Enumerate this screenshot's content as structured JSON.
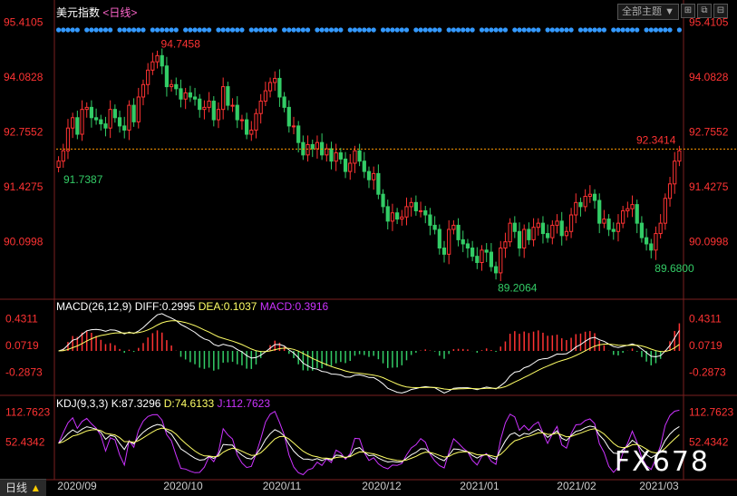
{
  "header": {
    "symbol": "美元指数",
    "timeframe_label": "<日线>",
    "theme_selector": "全部主题",
    "theme_arrow": "▼",
    "win_buttons": [
      "⊞",
      "⧉",
      "⊟"
    ]
  },
  "watermark": "FX678",
  "bottom_bar": {
    "timeframe": "日线",
    "arrow": "▲"
  },
  "colors": {
    "up": "#ff3333",
    "down": "#33cc66",
    "diff": "#ffffff",
    "dea": "#ffff66",
    "k": "#ffffff",
    "d": "#ffff66",
    "j": "#cc33ff",
    "marker": "#3399ff",
    "price_line": "#ff9900"
  },
  "chart_data": [
    {
      "type": "candlestick",
      "title": "美元指数",
      "y_ticks": [
        "95.4105",
        "94.0828",
        "92.7552",
        "91.4275",
        "90.0998"
      ],
      "y_tick_values": [
        95.4105,
        94.0828,
        92.7552,
        91.4275,
        90.0998
      ],
      "ylim": [
        88.8,
        95.55
      ],
      "x_ticks": [
        "2020/09",
        "2020/10",
        "2020/11",
        "2020/12",
        "2021/01",
        "2021/02",
        "2021/03"
      ],
      "annotations": {
        "high": "94.7458",
        "high_value": 94.7458,
        "low": "89.2064",
        "low_value": 89.2064,
        "start_low": "91.7387",
        "start_low_value": 91.7387,
        "recent_low": "89.6800",
        "recent_low_value": 89.68,
        "last": "92.3414",
        "last_value": 92.3414
      },
      "close": [
        92.05,
        92.3,
        92.85,
        93.1,
        92.7,
        93.3,
        93.35,
        93.1,
        93.05,
        92.95,
        92.85,
        93.3,
        93.1,
        92.9,
        92.8,
        93.4,
        93.0,
        93.6,
        93.9,
        94.25,
        94.45,
        94.6,
        94.35,
        93.85,
        93.9,
        93.8,
        93.55,
        93.7,
        93.6,
        93.55,
        93.3,
        93.35,
        93.5,
        93.05,
        93.3,
        93.85,
        93.4,
        93.4,
        93.05,
        93.05,
        92.7,
        92.8,
        93.2,
        93.5,
        93.75,
        93.95,
        94.05,
        93.6,
        93.35,
        92.9,
        92.9,
        92.5,
        92.2,
        92.45,
        92.35,
        92.5,
        92.2,
        92.35,
        92.05,
        92.25,
        92.1,
        91.8,
        92.0,
        92.3,
        92.05,
        91.8,
        91.6,
        91.75,
        91.25,
        90.95,
        90.6,
        90.8,
        90.65,
        90.7,
        90.95,
        91.05,
        90.85,
        90.85,
        90.75,
        90.5,
        90.4,
        89.95,
        89.8,
        90.4,
        90.5,
        90.15,
        90.05,
        89.95,
        89.75,
        89.6,
        89.9,
        89.85,
        89.5,
        89.35,
        89.95,
        90.1,
        90.55,
        90.35,
        89.95,
        90.4,
        90.15,
        90.45,
        90.55,
        90.3,
        90.2,
        90.5,
        90.6,
        90.25,
        90.35,
        90.75,
        91.05,
        90.95,
        91.2,
        91.25,
        91.1,
        90.55,
        90.65,
        90.4,
        90.35,
        90.55,
        90.85,
        90.9,
        91.0,
        90.55,
        90.2,
        90.05,
        89.9,
        90.3,
        90.55,
        91.15,
        91.5,
        92.05,
        92.3
      ],
      "macd": {
        "title": "MACD(26,12,9)",
        "diff_label": "DIFF:0.2995",
        "dea_label": "DEA:0.1037",
        "macd_label": "MACD:0.3916",
        "y_ticks": [
          "0.4311",
          "0.0719",
          "-0.2873"
        ],
        "y_tick_values": [
          0.4311,
          0.0719,
          -0.2873
        ],
        "ylim": [
          -0.55,
          0.55
        ]
      },
      "kdj": {
        "title": "KDJ(9,3,3)",
        "k_label": "K:87.3296",
        "d_label": "D:74.6133",
        "j_label": "J:112.7623",
        "y_ticks": [
          "112.7623",
          "52.4342"
        ],
        "y_tick_values": [
          112.7623,
          52.4342
        ],
        "ylim": [
          -20,
          125
        ]
      }
    }
  ]
}
